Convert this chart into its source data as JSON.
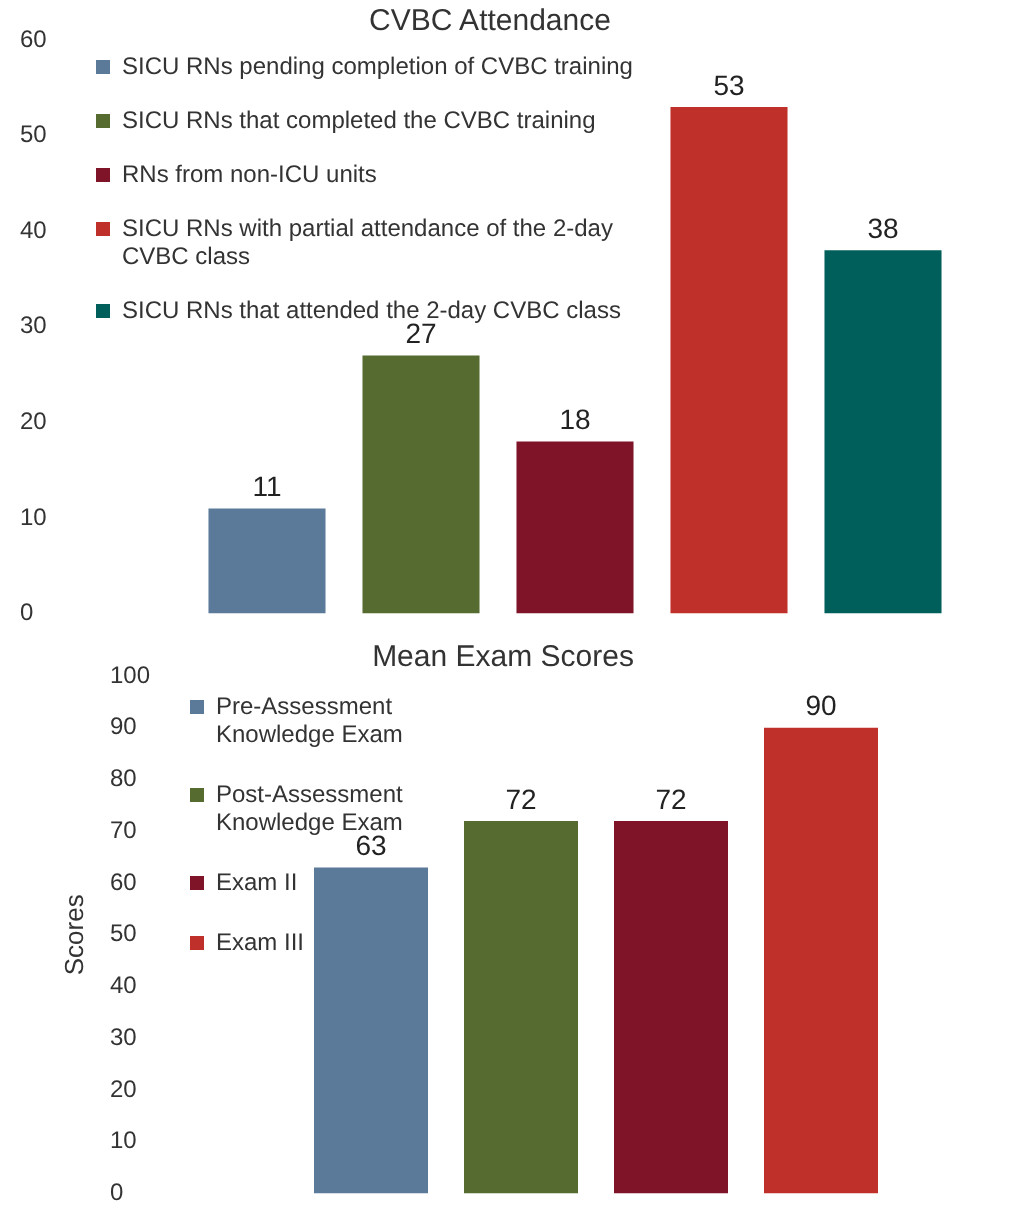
{
  "chart_data": [
    {
      "type": "bar",
      "title": "CVBC Attendance",
      "categories": [
        null,
        null,
        null,
        null,
        null
      ],
      "stacked": true,
      "ylim": [
        0,
        60
      ],
      "yticks": [
        0,
        10,
        20,
        30,
        40,
        50,
        60
      ],
      "grid": false,
      "legend": "top left",
      "tick_labels": "y",
      "data_labels": true,
      "series": [
        {
          "name": "SICU RNs pending completion of CVBC training",
          "color": "#5b7a99",
          "values": [
            11,
            null,
            null,
            null,
            null
          ]
        },
        {
          "name": "SICU RNs that completed the CVBC training",
          "color": "#556b2f",
          "values": [
            null,
            27,
            null,
            null,
            null
          ]
        },
        {
          "name": "RNs from non-ICU units",
          "color": "#7f1428",
          "values": [
            null,
            null,
            18,
            null,
            null
          ]
        },
        {
          "name": "SICU RNs with partial attendance of the 2-day CVBC class",
          "color": "#c0302a",
          "values": [
            null,
            null,
            null,
            53,
            null
          ]
        },
        {
          "name": "SICU RNs that attended the 2-day CVBC class",
          "color": "#005f5a",
          "values": [
            null,
            null,
            null,
            null,
            38
          ]
        }
      ]
    },
    {
      "type": "bar",
      "title": "Mean Exam Scores",
      "ylabel": "Scores",
      "categories": [
        null,
        null,
        null,
        null
      ],
      "stacked": true,
      "ylim": [
        0,
        100
      ],
      "yticks": [
        0,
        10,
        20,
        30,
        40,
        50,
        60,
        70,
        80,
        90,
        100
      ],
      "grid": false,
      "legend": "top left",
      "tick_labels": "y",
      "data_labels": true,
      "series": [
        {
          "name": "Pre-Assessment Knowledge Exam",
          "color": "#5b7a99",
          "values": [
            63,
            null,
            null,
            null
          ]
        },
        {
          "name": "Post-Assessment Knowledge Exam",
          "color": "#556b2f",
          "values": [
            null,
            72,
            null,
            null
          ]
        },
        {
          "name": "Exam II",
          "color": "#7f1428",
          "values": [
            null,
            null,
            72,
            null
          ]
        },
        {
          "name": "Exam III",
          "color": "#c0302a",
          "values": [
            null,
            null,
            null,
            90
          ]
        }
      ]
    }
  ]
}
